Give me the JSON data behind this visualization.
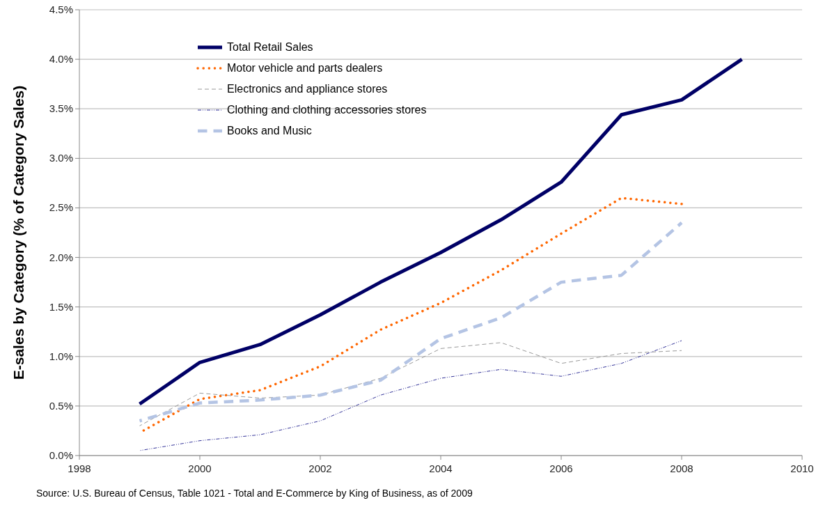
{
  "chart_data": {
    "type": "line",
    "ylabel": "E-sales by Category (% of Category Sales)",
    "x": [
      1999,
      2000,
      2001,
      2002,
      2003,
      2004,
      2005,
      2006,
      2007,
      2008,
      2009
    ],
    "xlim": [
      1998,
      2010
    ],
    "xticks": [
      1998,
      2000,
      2002,
      2004,
      2006,
      2008,
      2010
    ],
    "ylim": [
      0,
      4.5
    ],
    "yticks": [
      {
        "value": 0,
        "label": "0.0%"
      },
      {
        "value": 0.5,
        "label": "0.5%"
      },
      {
        "value": 1,
        "label": "1.0%"
      },
      {
        "value": 1.5,
        "label": "1.5%"
      },
      {
        "value": 2,
        "label": "2.0%"
      },
      {
        "value": 2.5,
        "label": "2.5%"
      },
      {
        "value": 3,
        "label": "3.0%"
      },
      {
        "value": 3.5,
        "label": "3.5%"
      },
      {
        "value": 4,
        "label": "4.0%"
      },
      {
        "value": 4.5,
        "label": "4.5%"
      }
    ],
    "grid": "y",
    "legend": "top left",
    "marker": "none",
    "series": [
      {
        "name": "Total Retail Sales",
        "color": "#000066",
        "line_style": "solid",
        "values": [
          0.52,
          0.94,
          1.12,
          1.42,
          1.75,
          2.05,
          2.38,
          2.76,
          3.44,
          3.59,
          4.0
        ]
      },
      {
        "name": "Motor vehicle and parts dealers",
        "color": "#ff6600",
        "line_style": "dotted",
        "values": [
          0.23,
          0.57,
          0.66,
          0.9,
          1.27,
          1.54,
          1.87,
          2.24,
          2.6,
          2.54,
          null
        ]
      },
      {
        "name": "Electronics and appliance stores",
        "color": "#999999",
        "line_style": "dashed",
        "values": [
          0.3,
          0.63,
          0.58,
          0.61,
          0.78,
          1.08,
          1.14,
          0.93,
          1.03,
          1.06,
          null
        ]
      },
      {
        "name": "Clothing and clothing accessories stores",
        "color": "#333399",
        "line_style": "dotted",
        "values": [
          0.05,
          0.15,
          0.21,
          0.35,
          0.61,
          0.78,
          0.87,
          0.8,
          0.93,
          1.16,
          null
        ]
      },
      {
        "name": "Books and Music",
        "color": "#b4c4e4",
        "line_style": "dashed",
        "values": [
          0.35,
          0.53,
          0.56,
          0.61,
          0.76,
          1.18,
          1.39,
          1.75,
          1.82,
          2.35,
          null
        ]
      }
    ],
    "annotations": [
      "Source: U.S. Bureau of Census, Table 1021 - Total and E-Commerce by King of Business, as of 2009"
    ]
  }
}
